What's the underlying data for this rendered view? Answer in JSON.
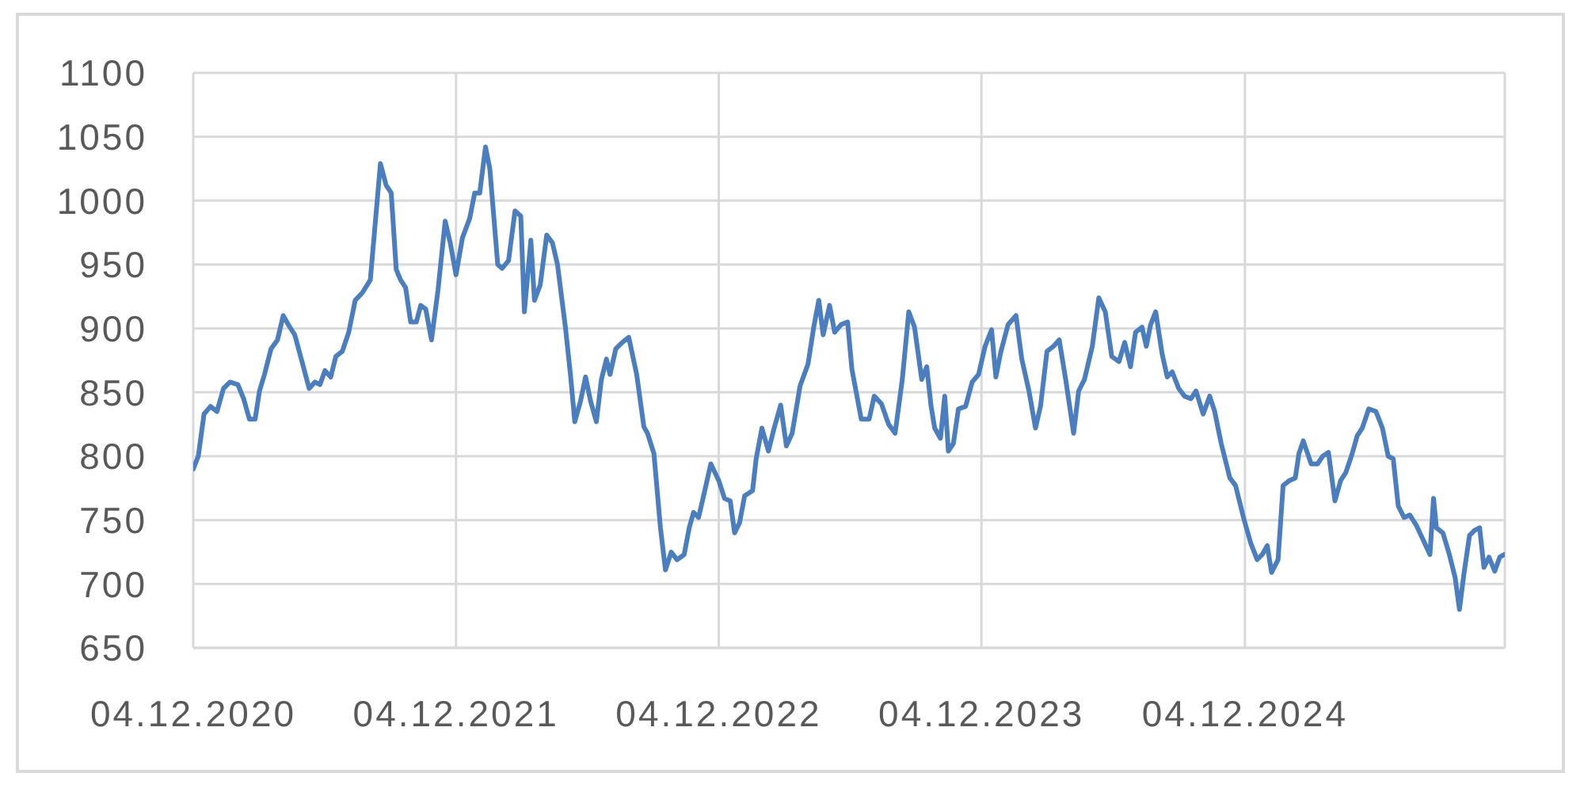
{
  "chart_data": {
    "type": "line",
    "color": "#4a7ebf",
    "grid": true,
    "xlim": [
      "2020-12-04",
      "2025-11-30"
    ],
    "xticks": [
      {
        "value": "2020-12-04",
        "label": "04.12.2020"
      },
      {
        "value": "2021-12-04",
        "label": "04.12.2021"
      },
      {
        "value": "2022-12-04",
        "label": "04.12.2022"
      },
      {
        "value": "2023-12-04",
        "label": "04.12.2023"
      },
      {
        "value": "2024-12-04",
        "label": "04.12.2024"
      }
    ],
    "ylim": [
      650,
      1100
    ],
    "yticks": [
      650,
      700,
      750,
      800,
      850,
      900,
      950,
      1000,
      1050,
      1100
    ],
    "x": [
      "2020-12-04",
      "2020-12-11",
      "2020-12-19",
      "2020-12-28",
      "2021-01-06",
      "2021-01-15",
      "2021-01-24",
      "2021-02-04",
      "2021-02-12",
      "2021-02-20",
      "2021-02-28",
      "2021-03-06",
      "2021-03-13",
      "2021-03-22",
      "2021-03-31",
      "2021-04-08",
      "2021-04-15",
      "2021-04-24",
      "2021-05-05",
      "2021-05-14",
      "2021-05-22",
      "2021-05-29",
      "2021-06-05",
      "2021-06-13",
      "2021-06-20",
      "2021-06-29",
      "2021-07-08",
      "2021-07-17",
      "2021-07-27",
      "2021-08-07",
      "2021-08-21",
      "2021-08-29",
      "2021-09-05",
      "2021-09-12",
      "2021-09-18",
      "2021-09-25",
      "2021-10-02",
      "2021-10-10",
      "2021-10-16",
      "2021-10-23",
      "2021-10-31",
      "2021-11-09",
      "2021-11-19",
      "2021-11-26",
      "2021-12-04",
      "2021-12-13",
      "2021-12-23",
      "2021-12-30",
      "2022-01-06",
      "2022-01-14",
      "2022-01-20",
      "2022-01-31",
      "2022-02-06",
      "2022-02-15",
      "2022-02-24",
      "2022-03-04",
      "2022-03-09",
      "2022-03-18",
      "2022-03-23",
      "2022-03-31",
      "2022-04-09",
      "2022-04-17",
      "2022-04-24",
      "2022-05-05",
      "2022-05-12",
      "2022-05-18",
      "2022-05-26",
      "2022-06-02",
      "2022-06-09",
      "2022-06-17",
      "2022-06-24",
      "2022-07-01",
      "2022-07-06",
      "2022-07-14",
      "2022-07-23",
      "2022-08-01",
      "2022-08-12",
      "2022-08-22",
      "2022-08-27",
      "2022-09-05",
      "2022-09-14",
      "2022-09-21",
      "2022-09-29",
      "2022-10-07",
      "2022-10-17",
      "2022-10-24",
      "2022-10-30",
      "2022-11-06",
      "2022-11-13",
      "2022-11-23",
      "2022-12-04",
      "2022-12-12",
      "2022-12-20",
      "2022-12-26",
      "2023-01-02",
      "2023-01-09",
      "2023-01-20",
      "2023-01-25",
      "2023-02-02",
      "2023-02-11",
      "2023-02-19",
      "2023-02-28",
      "2023-03-08",
      "2023-03-16",
      "2023-03-27",
      "2023-04-07",
      "2023-04-15",
      "2023-04-22",
      "2023-04-28",
      "2023-05-07",
      "2023-05-14",
      "2023-05-23",
      "2023-06-01",
      "2023-06-07",
      "2023-06-20",
      "2023-07-01",
      "2023-07-08",
      "2023-07-18",
      "2023-07-28",
      "2023-08-06",
      "2023-08-16",
      "2023-08-25",
      "2023-09-02",
      "2023-09-12",
      "2023-09-19",
      "2023-09-25",
      "2023-09-30",
      "2023-10-08",
      "2023-10-14",
      "2023-10-19",
      "2023-10-26",
      "2023-11-02",
      "2023-11-12",
      "2023-11-21",
      "2023-11-30",
      "2023-12-09",
      "2023-12-18",
      "2023-12-24",
      "2023-12-31",
      "2024-01-10",
      "2024-01-21",
      "2024-01-29",
      "2024-02-08",
      "2024-02-17",
      "2024-02-24",
      "2024-03-04",
      "2024-03-13",
      "2024-03-21",
      "2024-03-30",
      "2024-04-10",
      "2024-04-17",
      "2024-04-25",
      "2024-05-06",
      "2024-05-15",
      "2024-05-24",
      "2024-06-02",
      "2024-06-12",
      "2024-06-20",
      "2024-06-28",
      "2024-07-05",
      "2024-07-14",
      "2024-07-20",
      "2024-07-26",
      "2024-08-02",
      "2024-08-11",
      "2024-08-18",
      "2024-08-25",
      "2024-09-03",
      "2024-09-11",
      "2024-09-20",
      "2024-09-27",
      "2024-10-07",
      "2024-10-16",
      "2024-10-23",
      "2024-11-01",
      "2024-11-13",
      "2024-11-21",
      "2024-12-02",
      "2024-12-12",
      "2024-12-21",
      "2024-12-28",
      "2025-01-04",
      "2025-01-10",
      "2025-01-19",
      "2025-01-26",
      "2025-02-04",
      "2025-02-12",
      "2025-02-17",
      "2025-02-23",
      "2025-03-06",
      "2025-03-15",
      "2025-03-22",
      "2025-03-30",
      "2025-04-08",
      "2025-04-16",
      "2025-04-23",
      "2025-05-02",
      "2025-05-09",
      "2025-05-16",
      "2025-05-25",
      "2025-06-04",
      "2025-06-13",
      "2025-06-21",
      "2025-06-28",
      "2025-07-05",
      "2025-07-13",
      "2025-07-21",
      "2025-07-30",
      "2025-08-09",
      "2025-08-18",
      "2025-08-23",
      "2025-08-27",
      "2025-09-05",
      "2025-09-14",
      "2025-09-22",
      "2025-09-28",
      "2025-10-04",
      "2025-10-12",
      "2025-10-19",
      "2025-10-26",
      "2025-11-01",
      "2025-11-08",
      "2025-11-16",
      "2025-11-23",
      "2025-11-29"
    ],
    "values": [
      790,
      800,
      833,
      839,
      835,
      853,
      858,
      856,
      845,
      829,
      829,
      851,
      864,
      884,
      891,
      910,
      903,
      895,
      872,
      853,
      858,
      856,
      867,
      862,
      878,
      882,
      897,
      922,
      928,
      938,
      1029,
      1012,
      1006,
      946,
      938,
      932,
      905,
      905,
      918,
      915,
      891,
      930,
      984,
      967,
      942,
      971,
      986,
      1006,
      1006,
      1042,
      1025,
      950,
      947,
      953,
      992,
      988,
      913,
      969,
      922,
      934,
      973,
      967,
      950,
      901,
      864,
      827,
      843,
      862,
      843,
      827,
      860,
      876,
      864,
      884,
      889,
      893,
      864,
      823,
      818,
      802,
      744,
      711,
      725,
      719,
      723,
      744,
      756,
      752,
      769,
      794,
      781,
      767,
      765,
      740,
      748,
      769,
      773,
      798,
      822,
      804,
      822,
      840,
      808,
      818,
      855,
      872,
      901,
      922,
      895,
      918,
      897,
      903,
      905,
      868,
      829,
      829,
      847,
      841,
      825,
      818,
      860,
      913,
      901,
      860,
      870,
      839,
      822,
      814,
      847,
      804,
      810,
      837,
      839,
      858,
      864,
      886,
      899,
      862,
      882,
      903,
      910,
      876,
      851,
      822,
      839,
      882,
      886,
      891,
      860,
      818,
      851,
      860,
      886,
      924,
      913,
      878,
      874,
      889,
      870,
      897,
      901,
      886,
      903,
      913,
      880,
      862,
      866,
      853,
      847,
      845,
      851,
      833,
      847,
      835,
      810,
      783,
      777,
      752,
      732,
      719,
      723,
      730,
      709,
      719,
      777,
      781,
      783,
      802,
      812,
      794,
      794,
      800,
      803,
      765,
      781,
      787,
      802,
      816,
      822,
      837,
      835,
      822,
      800,
      798,
      761,
      752,
      754,
      746,
      734,
      723,
      767,
      744,
      740,
      723,
      705,
      680,
      707,
      738,
      742,
      744,
      713,
      721,
      710,
      721,
      723
    ]
  }
}
